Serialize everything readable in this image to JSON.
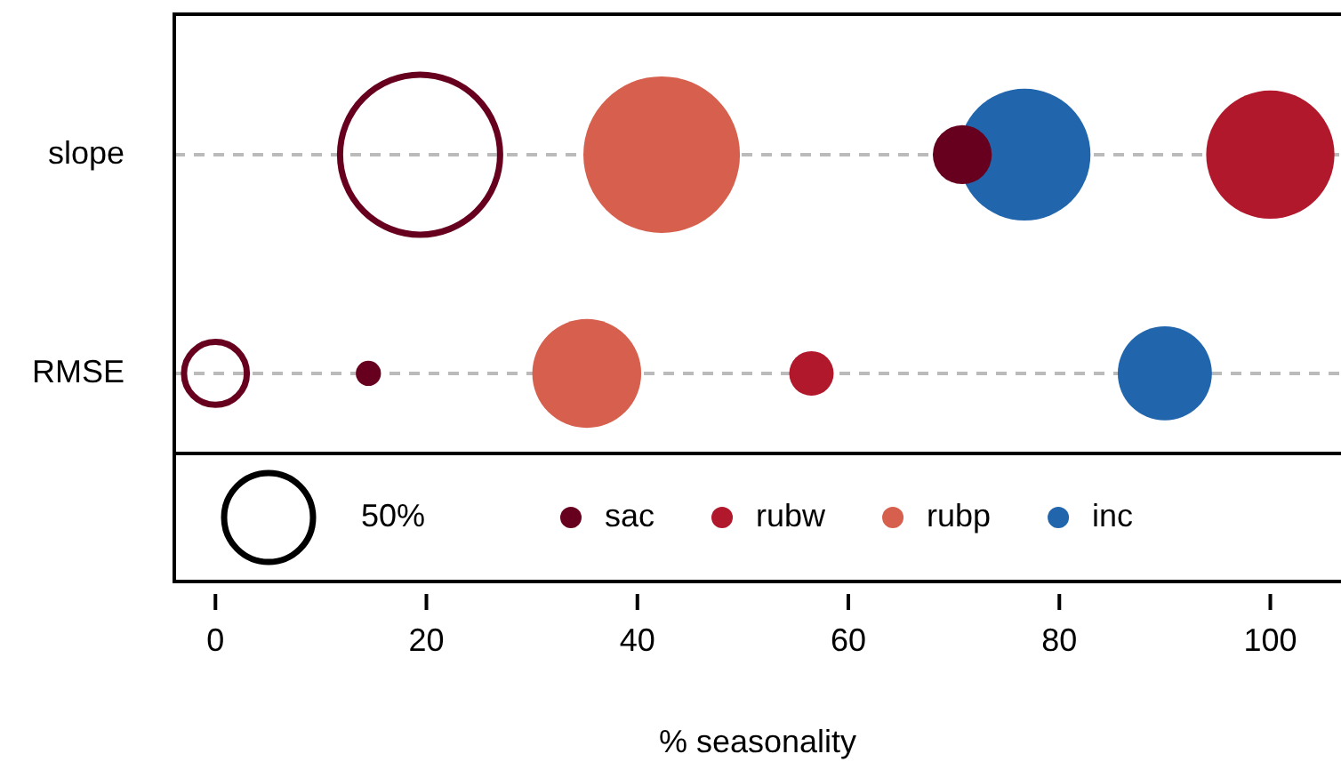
{
  "chart_data": {
    "type": "bubble",
    "orientation": "horizontal",
    "xlabel": "% seasonality",
    "categories": [
      "slope",
      "RMSE"
    ],
    "xlim": [
      -3.9,
      106.7
    ],
    "xticks": [
      0,
      20,
      40,
      60,
      80,
      100
    ],
    "grid": "y",
    "legend": "bottom",
    "size_legend": [
      {
        "value": 50,
        "label": "50%"
      }
    ],
    "series": [
      {
        "color": "#67001f",
        "values": [
          19.4,
          0
        ],
        "sizes": [
          162,
          25
        ]
      },
      {
        "name": "sac",
        "color": "#67001f",
        "values": [
          70.8,
          14.5
        ],
        "sizes": [
          22,
          4
        ]
      },
      {
        "name": "rubw",
        "color": "#b2182b",
        "values": [
          100,
          56.5
        ],
        "sizes": [
          104,
          12.5
        ]
      },
      {
        "name": "rubp",
        "color": "#d6604d",
        "values": [
          42.3,
          35.2
        ],
        "sizes": [
          155,
          75
        ]
      },
      {
        "name": "inc",
        "color": "#2166ac",
        "values": [
          76.7,
          90
        ],
        "sizes": [
          110,
          56
        ]
      }
    ]
  }
}
